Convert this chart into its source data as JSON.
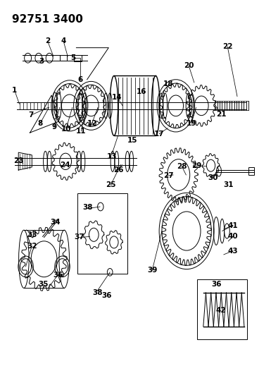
{
  "title": "92751 3400",
  "bg_color": "#ffffff",
  "line_color": "#000000",
  "title_fontsize": 11,
  "label_fontsize": 7.5,
  "fig_width": 3.85,
  "fig_height": 5.33,
  "dpi": 100
}
